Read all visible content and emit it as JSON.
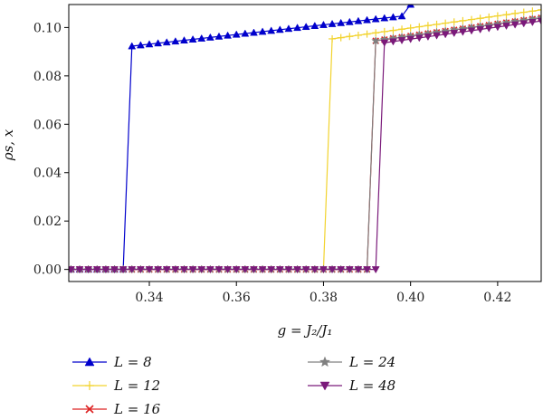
{
  "chart_data": {
    "type": "line",
    "title": "",
    "xlabel": "g = J₂/J₁",
    "ylabel": "ρs, x",
    "xlim": [
      0.3215,
      0.43
    ],
    "ylim": [
      -0.005,
      0.1095
    ],
    "xticks": [
      0.34,
      0.36,
      0.38,
      0.4,
      0.42
    ],
    "xtick_labels": [
      "0.34",
      "0.36",
      "0.38",
      "0.40",
      "0.42"
    ],
    "yticks": [
      0.0,
      0.02,
      0.04,
      0.06,
      0.08,
      0.1
    ],
    "ytick_labels": [
      "0.00",
      "0.02",
      "0.04",
      "0.06",
      "0.08",
      "0.10"
    ],
    "grid": false,
    "legend_position": "below plot, two columns",
    "series": [
      {
        "name": "L = 8",
        "color": "#0000cc",
        "marker": "triangle-up",
        "x": [
          0.322,
          0.324,
          0.326,
          0.328,
          0.33,
          0.332,
          0.334,
          0.336,
          0.338,
          0.34,
          0.342,
          0.344,
          0.346,
          0.348,
          0.35,
          0.352,
          0.354,
          0.356,
          0.358,
          0.36,
          0.362,
          0.364,
          0.366,
          0.368,
          0.37,
          0.372,
          0.374,
          0.376,
          0.378,
          0.38,
          0.382,
          0.384,
          0.386,
          0.388,
          0.39,
          0.392,
          0.394,
          0.396,
          0.398,
          0.4
        ],
        "values": [
          0.0,
          0.0,
          0.0,
          0.0,
          0.0,
          0.0,
          0.0,
          0.0923,
          0.0927,
          0.0931,
          0.0935,
          0.0939,
          0.0943,
          0.0947,
          0.0951,
          0.0955,
          0.0959,
          0.0963,
          0.0967,
          0.0971,
          0.0975,
          0.0979,
          0.0983,
          0.0987,
          0.0991,
          0.0995,
          0.0999,
          0.1003,
          0.1007,
          0.1011,
          0.1015,
          0.1019,
          0.1023,
          0.1027,
          0.1031,
          0.1035,
          0.1039,
          0.1043,
          0.1047,
          0.1095
        ]
      },
      {
        "name": "L = 12",
        "color": "#f2d32e",
        "marker": "plus",
        "x": [
          0.322,
          0.324,
          0.326,
          0.328,
          0.33,
          0.332,
          0.334,
          0.336,
          0.338,
          0.34,
          0.342,
          0.344,
          0.346,
          0.348,
          0.35,
          0.352,
          0.354,
          0.356,
          0.358,
          0.36,
          0.362,
          0.364,
          0.366,
          0.368,
          0.37,
          0.372,
          0.374,
          0.376,
          0.378,
          0.38,
          0.382,
          0.384,
          0.386,
          0.388,
          0.39,
          0.392,
          0.394,
          0.396,
          0.398,
          0.4,
          0.402,
          0.404,
          0.406,
          0.408,
          0.41,
          0.412,
          0.414,
          0.416,
          0.418,
          0.42,
          0.422,
          0.424,
          0.426,
          0.428,
          0.43
        ],
        "values": [
          0.0,
          0.0,
          0.0,
          0.0,
          0.0,
          0.0,
          0.0,
          0.0,
          0.0,
          0.0,
          0.0,
          0.0,
          0.0,
          0.0,
          0.0,
          0.0,
          0.0,
          0.0,
          0.0,
          0.0,
          0.0,
          0.0,
          0.0,
          0.0,
          0.0,
          0.0,
          0.0,
          0.0,
          0.0,
          0.0,
          0.0953,
          0.0958,
          0.0963,
          0.0968,
          0.0973,
          0.0978,
          0.0983,
          0.0988,
          0.0993,
          0.0998,
          0.1003,
          0.1008,
          0.1013,
          0.1018,
          0.1023,
          0.1028,
          0.1033,
          0.1038,
          0.1043,
          0.1048,
          0.1053,
          0.1058,
          0.1063,
          0.1068,
          0.1073
        ]
      },
      {
        "name": "L = 16",
        "color": "#dd2222",
        "marker": "x",
        "x": [
          0.322,
          0.324,
          0.326,
          0.328,
          0.33,
          0.332,
          0.334,
          0.336,
          0.338,
          0.34,
          0.342,
          0.344,
          0.346,
          0.348,
          0.35,
          0.352,
          0.354,
          0.356,
          0.358,
          0.36,
          0.362,
          0.364,
          0.366,
          0.368,
          0.37,
          0.372,
          0.374,
          0.376,
          0.378,
          0.38,
          0.382,
          0.384,
          0.386,
          0.388,
          0.39,
          0.392,
          0.394,
          0.396,
          0.398,
          0.4,
          0.402,
          0.404,
          0.406,
          0.408,
          0.41,
          0.412,
          0.414,
          0.416,
          0.418,
          0.42,
          0.422,
          0.424,
          0.426,
          0.428,
          0.43
        ],
        "values": [
          0.0,
          0.0,
          0.0,
          0.0,
          0.0,
          0.0,
          0.0,
          0.0,
          0.0,
          0.0,
          0.0,
          0.0,
          0.0,
          0.0,
          0.0,
          0.0,
          0.0,
          0.0,
          0.0,
          0.0,
          0.0,
          0.0,
          0.0,
          0.0,
          0.0,
          0.0,
          0.0,
          0.0,
          0.0,
          0.0,
          0.0,
          0.0,
          0.0,
          0.0,
          0.0,
          0.0945,
          0.095,
          0.0955,
          0.096,
          0.0965,
          0.097,
          0.0975,
          0.098,
          0.0985,
          0.099,
          0.0995,
          0.1,
          0.1005,
          0.101,
          0.1015,
          0.102,
          0.1025,
          0.103,
          0.1035,
          0.104
        ]
      },
      {
        "name": "L = 24",
        "color": "#808080",
        "marker": "star",
        "x": [
          0.322,
          0.324,
          0.326,
          0.328,
          0.33,
          0.332,
          0.334,
          0.336,
          0.338,
          0.34,
          0.342,
          0.344,
          0.346,
          0.348,
          0.35,
          0.352,
          0.354,
          0.356,
          0.358,
          0.36,
          0.362,
          0.364,
          0.366,
          0.368,
          0.37,
          0.372,
          0.374,
          0.376,
          0.378,
          0.38,
          0.382,
          0.384,
          0.386,
          0.388,
          0.39,
          0.392,
          0.394,
          0.396,
          0.398,
          0.4,
          0.402,
          0.404,
          0.406,
          0.408,
          0.41,
          0.412,
          0.414,
          0.416,
          0.418,
          0.42,
          0.422,
          0.424,
          0.426,
          0.428,
          0.43
        ],
        "values": [
          0.0,
          0.0,
          0.0,
          0.0,
          0.0,
          0.0,
          0.0,
          0.0,
          0.0,
          0.0,
          0.0,
          0.0,
          0.0,
          0.0,
          0.0,
          0.0,
          0.0,
          0.0,
          0.0,
          0.0,
          0.0,
          0.0,
          0.0,
          0.0,
          0.0,
          0.0,
          0.0,
          0.0,
          0.0,
          0.0,
          0.0,
          0.0,
          0.0,
          0.0,
          0.0,
          0.0945,
          0.095,
          0.0955,
          0.096,
          0.0965,
          0.097,
          0.0975,
          0.098,
          0.0985,
          0.099,
          0.0995,
          0.1,
          0.1005,
          0.101,
          0.1015,
          0.102,
          0.1025,
          0.103,
          0.1035,
          0.104
        ]
      },
      {
        "name": "L = 48",
        "color": "#7a1a7a",
        "marker": "triangle-down",
        "x": [
          0.322,
          0.324,
          0.326,
          0.328,
          0.33,
          0.332,
          0.334,
          0.336,
          0.338,
          0.34,
          0.342,
          0.344,
          0.346,
          0.348,
          0.35,
          0.352,
          0.354,
          0.356,
          0.358,
          0.36,
          0.362,
          0.364,
          0.366,
          0.368,
          0.37,
          0.372,
          0.374,
          0.376,
          0.378,
          0.38,
          0.382,
          0.384,
          0.386,
          0.388,
          0.39,
          0.392,
          0.394,
          0.396,
          0.398,
          0.4,
          0.402,
          0.404,
          0.406,
          0.408,
          0.41,
          0.412,
          0.414,
          0.416,
          0.418,
          0.42,
          0.422,
          0.424,
          0.426,
          0.428,
          0.43
        ],
        "values": [
          0.0,
          0.0,
          0.0,
          0.0,
          0.0,
          0.0,
          0.0,
          0.0,
          0.0,
          0.0,
          0.0,
          0.0,
          0.0,
          0.0,
          0.0,
          0.0,
          0.0,
          0.0,
          0.0,
          0.0,
          0.0,
          0.0,
          0.0,
          0.0,
          0.0,
          0.0,
          0.0,
          0.0,
          0.0,
          0.0,
          0.0,
          0.0,
          0.0,
          0.0,
          0.0,
          0.0,
          0.0937,
          0.0942,
          0.0947,
          0.0952,
          0.0957,
          0.0962,
          0.0967,
          0.0972,
          0.0977,
          0.0982,
          0.0987,
          0.0992,
          0.0997,
          0.1002,
          0.1007,
          0.1012,
          0.1017,
          0.1022,
          0.1027
        ]
      }
    ]
  }
}
